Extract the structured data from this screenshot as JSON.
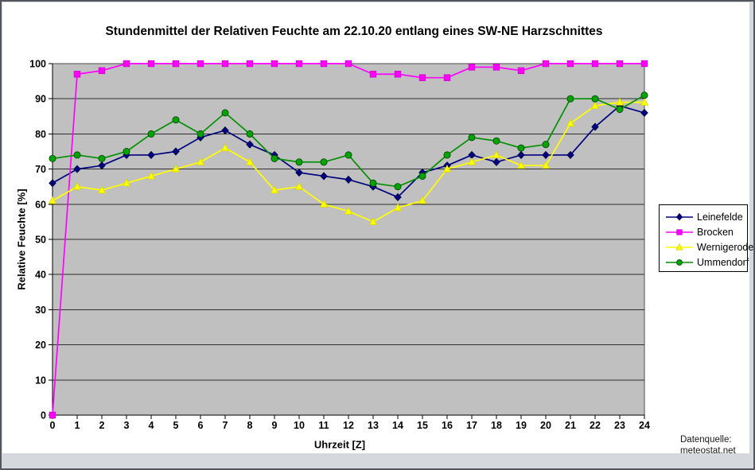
{
  "datasource": {
    "line1": "Datenquelle:",
    "line2": "meteostat.net"
  },
  "chart_data": {
    "type": "line",
    "title": "Stundenmittel der Relativen Feuchte am 22.10.20 entlang eines SW-NE Harzschnittes",
    "xlabel": "Uhrzeit [Z]",
    "ylabel": "Relative Feuchte [%]",
    "xlim": [
      0,
      24
    ],
    "ylim": [
      0,
      100
    ],
    "grid": true,
    "plot_bg": "#C0C0C0",
    "legend_position": "right",
    "xticks": [
      0,
      1,
      2,
      3,
      4,
      5,
      6,
      7,
      8,
      9,
      10,
      11,
      12,
      13,
      14,
      15,
      16,
      17,
      18,
      19,
      20,
      21,
      22,
      23,
      24
    ],
    "yticks": [
      0,
      10,
      20,
      30,
      40,
      50,
      60,
      70,
      80,
      90,
      100
    ],
    "x": [
      0,
      1,
      2,
      3,
      4,
      5,
      6,
      7,
      8,
      9,
      10,
      11,
      12,
      13,
      14,
      15,
      16,
      17,
      18,
      19,
      20,
      21,
      22,
      23,
      24
    ],
    "series": [
      {
        "name": "Leinefelde",
        "marker": "diamond",
        "color": "#000080",
        "marker_fill": "#000080",
        "marker_stroke": "#000040",
        "values": [
          66,
          70,
          71,
          74,
          74,
          75,
          79,
          81,
          77,
          74,
          69,
          68,
          67,
          65,
          62,
          69,
          71,
          74,
          72,
          74,
          74,
          74,
          82,
          88,
          86
        ]
      },
      {
        "name": "Brocken",
        "marker": "square",
        "color": "#FF00FF",
        "marker_fill": "#FF00FF",
        "marker_stroke": "#CC00CC",
        "values": [
          0,
          97,
          98,
          100,
          100,
          100,
          100,
          100,
          100,
          100,
          100,
          100,
          100,
          97,
          97,
          96,
          96,
          99,
          99,
          98,
          100,
          100,
          100,
          100,
          100
        ]
      },
      {
        "name": "Wernigerode",
        "marker": "triangle",
        "color": "#FFFF00",
        "marker_fill": "#FFFF00",
        "marker_stroke": "#D6D600",
        "values": [
          61,
          65,
          64,
          66,
          68,
          70,
          72,
          76,
          72,
          64,
          65,
          60,
          58,
          55,
          59,
          61,
          70,
          72,
          74,
          71,
          71,
          83,
          88,
          89,
          89
        ]
      },
      {
        "name": "Ummendorf",
        "marker": "circle",
        "color": "#009100",
        "marker_fill": "#00A300",
        "marker_stroke": "#004000",
        "values": [
          73,
          74,
          73,
          75,
          80,
          84,
          80,
          86,
          80,
          73,
          72,
          72,
          74,
          66,
          65,
          68,
          74,
          79,
          78,
          76,
          77,
          90,
          90,
          87,
          91
        ]
      }
    ]
  }
}
